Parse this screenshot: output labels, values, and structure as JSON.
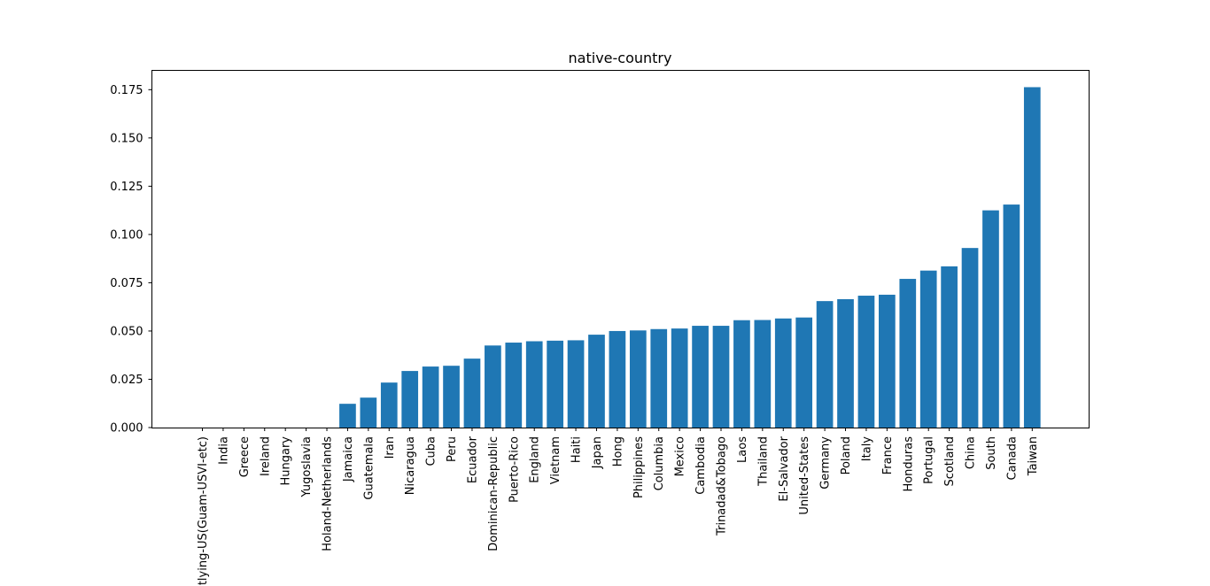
{
  "chart_data": {
    "type": "bar",
    "title": "native-country",
    "xlabel": "",
    "ylabel": "",
    "ylim": [
      0,
      0.185
    ],
    "yticks": [
      "0.000",
      "0.025",
      "0.050",
      "0.075",
      "0.100",
      "0.125",
      "0.150",
      "0.175"
    ],
    "ytick_values": [
      0,
      0.025,
      0.05,
      0.075,
      0.1,
      0.125,
      0.15,
      0.175
    ],
    "grid": false,
    "bar_color": "#1f77b4",
    "categories": [
      "Outlying-US(Guam-USVI-etc)",
      "India",
      "Greece",
      "Ireland",
      "Hungary",
      "Yugoslavia",
      "Holand-Netherlands",
      "Jamaica",
      "Guatemala",
      "Iran",
      "Nicaragua",
      "Cuba",
      "Peru",
      "Ecuador",
      "Dominican-Republic",
      "Puerto-Rico",
      "England",
      "Vietnam",
      "Haiti",
      "Japan",
      "Hong",
      "Philippines",
      "Columbia",
      "Mexico",
      "Cambodia",
      "Trinadad&Tobago",
      "Laos",
      "Thailand",
      "El-Salvador",
      "United-States",
      "Germany",
      "Poland",
      "Italy",
      "France",
      "Honduras",
      "Portugal",
      "Scotland",
      "China",
      "South",
      "Canada",
      "Taiwan"
    ],
    "values": [
      0,
      0,
      0,
      0,
      0,
      0,
      0,
      0.0123,
      0.0155,
      0.0233,
      0.0293,
      0.0316,
      0.032,
      0.0357,
      0.0425,
      0.044,
      0.0447,
      0.045,
      0.0452,
      0.0481,
      0.05,
      0.0503,
      0.051,
      0.0513,
      0.0527,
      0.0527,
      0.0556,
      0.0557,
      0.0565,
      0.057,
      0.0655,
      0.0665,
      0.0683,
      0.0688,
      0.077,
      0.0813,
      0.0835,
      0.093,
      0.1125,
      0.1155,
      0.1763
    ]
  }
}
